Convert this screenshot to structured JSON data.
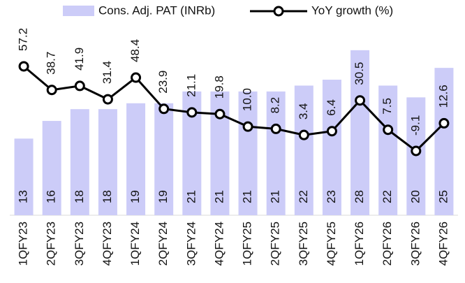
{
  "chart_data": {
    "type": "bar_line",
    "categories": [
      "1QFY23",
      "2QFY23",
      "3QFY23",
      "4QFY23",
      "1QFY24",
      "2QFY24",
      "3QFY24",
      "4QFY24",
      "1QFY25",
      "2QFY25",
      "3QFY25",
      "4QFY25",
      "1QFY26",
      "2QFY26",
      "3QFY26",
      "4QFY26"
    ],
    "series": [
      {
        "name": "Cons. Adj. PAT (INRb)",
        "type": "bar",
        "color": "#ccccf8",
        "values": [
          13,
          16,
          18,
          18,
          19,
          19,
          21,
          21,
          21,
          21,
          22,
          23,
          28,
          22,
          20,
          25
        ]
      },
      {
        "name": "YoY growth (%)",
        "type": "line",
        "axis": "y2",
        "color": "#000000",
        "values": [
          57.2,
          38.7,
          41.9,
          31.4,
          48.4,
          23.9,
          21.1,
          19.8,
          10.0,
          8.2,
          3.4,
          6.4,
          30.5,
          7.5,
          -9.1,
          12.6
        ],
        "value_labels": [
          "57.2",
          "38.7",
          "41.9",
          "31.4",
          "48.4",
          "23.9",
          "21.1",
          "19.8",
          "10.0",
          "8.2",
          "3.4",
          "6.4",
          "30.5",
          "7.5",
          "-9.1",
          "12.6"
        ]
      }
    ],
    "ylim": [
      0,
      30
    ],
    "y2lim": [
      -59.5,
      79.1
    ],
    "legend": "top"
  }
}
